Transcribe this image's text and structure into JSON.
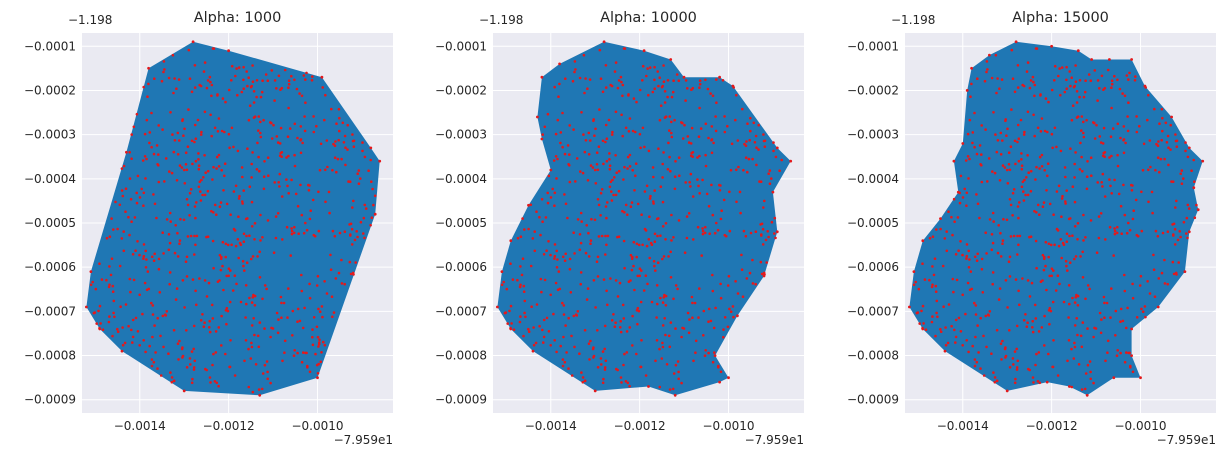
{
  "chart_data": [
    {
      "type": "scatter",
      "title": "Alpha: 1000",
      "x_offset_label": "−7.959e1",
      "y_offset_label": "−1.198",
      "xlim": [
        -0.00153,
        -0.00083
      ],
      "ylim": [
        -0.00093,
        -7e-05
      ],
      "x_ticks": [
        -0.0014,
        -0.0012,
        -0.001
      ],
      "x_tick_labels": [
        "−0.0014",
        "−0.0012",
        "−0.0010"
      ],
      "y_ticks": [
        -0.0001,
        -0.0002,
        -0.0003,
        -0.0004,
        -0.0005,
        -0.0006,
        -0.0007,
        -0.0008,
        -0.0009
      ],
      "y_tick_labels": [
        "−0.0001",
        "−0.0002",
        "−0.0003",
        "−0.0004",
        "−0.0005",
        "−0.0006",
        "−0.0007",
        "−0.0008",
        "−0.0009"
      ],
      "grid": true,
      "hull": [
        [
          -0.0013,
          -0.00088
        ],
        [
          -0.00113,
          -0.00089
        ],
        [
          -0.001,
          -0.00085
        ],
        [
          -0.00087,
          -0.00048
        ],
        [
          -0.00086,
          -0.00036
        ],
        [
          -0.00088,
          -0.00033
        ],
        [
          -0.00099,
          -0.00017
        ],
        [
          -0.0012,
          -0.00011
        ],
        [
          -0.00128,
          -9e-05
        ],
        [
          -0.00138,
          -0.00015
        ],
        [
          -0.00143,
          -0.00034
        ],
        [
          -0.00151,
          -0.00061
        ],
        [
          -0.00152,
          -0.00069
        ],
        [
          -0.00149,
          -0.00074
        ],
        [
          -0.00144,
          -0.00079
        ]
      ]
    },
    {
      "type": "scatter",
      "title": "Alpha: 10000",
      "x_offset_label": "−7.959e1",
      "y_offset_label": "−1.198",
      "xlim": [
        -0.00153,
        -0.00083
      ],
      "ylim": [
        -0.00093,
        -7e-05
      ],
      "x_ticks": [
        -0.0014,
        -0.0012,
        -0.001
      ],
      "x_tick_labels": [
        "−0.0014",
        "−0.0012",
        "−0.0010"
      ],
      "y_ticks": [
        -0.0001,
        -0.0002,
        -0.0003,
        -0.0004,
        -0.0005,
        -0.0006,
        -0.0007,
        -0.0008,
        -0.0009
      ],
      "y_tick_labels": [
        "−0.0001",
        "−0.0002",
        "−0.0003",
        "−0.0004",
        "−0.0005",
        "−0.0006",
        "−0.0007",
        "−0.0008",
        "−0.0009"
      ],
      "grid": true,
      "hull": [
        [
          -0.0013,
          -0.00088
        ],
        [
          -0.00118,
          -0.00087
        ],
        [
          -0.00112,
          -0.00089
        ],
        [
          -0.00102,
          -0.00086
        ],
        [
          -0.001,
          -0.00085
        ],
        [
          -0.00103,
          -0.0008
        ],
        [
          -0.00098,
          -0.00071
        ],
        [
          -0.00092,
          -0.00062
        ],
        [
          -0.00089,
          -0.00052
        ],
        [
          -0.0009,
          -0.00043
        ],
        [
          -0.00086,
          -0.00036
        ],
        [
          -0.00089,
          -0.00033
        ],
        [
          -0.00099,
          -0.00019
        ],
        [
          -0.00102,
          -0.00017
        ],
        [
          -0.0011,
          -0.00017
        ],
        [
          -0.00113,
          -0.00013
        ],
        [
          -0.00119,
          -0.00011
        ],
        [
          -0.00128,
          -9e-05
        ],
        [
          -0.00138,
          -0.00014
        ],
        [
          -0.00142,
          -0.00017
        ],
        [
          -0.00143,
          -0.00026
        ],
        [
          -0.00142,
          -0.00031
        ],
        [
          -0.0014,
          -0.00038
        ],
        [
          -0.00145,
          -0.00046
        ],
        [
          -0.00149,
          -0.00054
        ],
        [
          -0.00151,
          -0.00061
        ],
        [
          -0.00152,
          -0.00069
        ],
        [
          -0.00149,
          -0.00074
        ],
        [
          -0.00144,
          -0.00079
        ]
      ]
    },
    {
      "type": "scatter",
      "title": "Alpha: 15000",
      "x_offset_label": "−7.959e1",
      "y_offset_label": "−1.198",
      "xlim": [
        -0.00153,
        -0.00083
      ],
      "ylim": [
        -0.00093,
        -7e-05
      ],
      "x_ticks": [
        -0.0014,
        -0.0012,
        -0.001
      ],
      "x_tick_labels": [
        "−0.0014",
        "−0.0012",
        "−0.0010"
      ],
      "y_ticks": [
        -0.0001,
        -0.0002,
        -0.0003,
        -0.0004,
        -0.0005,
        -0.0006,
        -0.0007,
        -0.0008,
        -0.0009
      ],
      "y_tick_labels": [
        "−0.0001",
        "−0.0002",
        "−0.0003",
        "−0.0004",
        "−0.0005",
        "−0.0006",
        "−0.0007",
        "−0.0008",
        "−0.0009"
      ],
      "grid": true,
      "hull": [
        [
          -0.0013,
          -0.00088
        ],
        [
          -0.00121,
          -0.00086
        ],
        [
          -0.00116,
          -0.00087
        ],
        [
          -0.00112,
          -0.00089
        ],
        [
          -0.00106,
          -0.00085
        ],
        [
          -0.001,
          -0.00085
        ],
        [
          -0.00102,
          -0.0008
        ],
        [
          -0.00102,
          -0.00074
        ],
        [
          -0.00096,
          -0.00069
        ],
        [
          -0.0009,
          -0.00061
        ],
        [
          -0.00089,
          -0.00052
        ],
        [
          -0.00087,
          -0.00047
        ],
        [
          -0.00088,
          -0.00042
        ],
        [
          -0.00086,
          -0.00036
        ],
        [
          -0.00089,
          -0.00033
        ],
        [
          -0.00093,
          -0.00026
        ],
        [
          -0.00099,
          -0.00019
        ],
        [
          -0.00102,
          -0.00013
        ],
        [
          -0.00107,
          -0.00013
        ],
        [
          -0.00111,
          -0.00013
        ],
        [
          -0.00114,
          -0.00011
        ],
        [
          -0.0012,
          -0.0001
        ],
        [
          -0.00128,
          -9e-05
        ],
        [
          -0.00134,
          -0.00012
        ],
        [
          -0.00138,
          -0.00015
        ],
        [
          -0.00139,
          -0.0002
        ],
        [
          -0.0014,
          -0.00032
        ],
        [
          -0.00142,
          -0.00036
        ],
        [
          -0.00141,
          -0.00043
        ],
        [
          -0.00145,
          -0.00049
        ],
        [
          -0.00149,
          -0.00054
        ],
        [
          -0.00151,
          -0.00061
        ],
        [
          -0.00152,
          -0.00069
        ],
        [
          -0.00149,
          -0.00074
        ],
        [
          -0.00144,
          -0.00079
        ]
      ]
    }
  ],
  "colors": {
    "background": "#ffffff",
    "plot_background": "#eaeaf2",
    "grid": "#ffffff",
    "fill": "#1f77b4",
    "points": "#e3191c",
    "text": "#262626"
  }
}
